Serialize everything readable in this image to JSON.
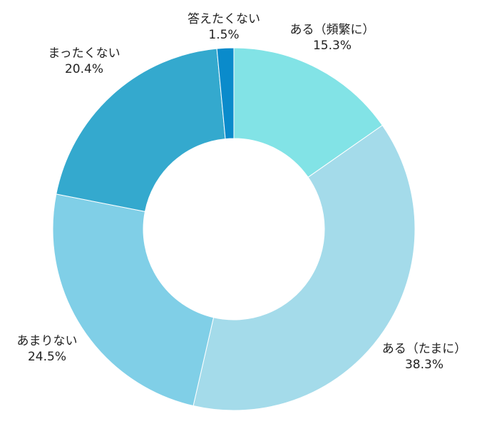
{
  "chart_data": {
    "type": "pie",
    "donut": true,
    "title": "",
    "categories": [
      "ある（頻繁に）",
      "ある（たまに）",
      "あまりない",
      "まったくない",
      "答えたくない"
    ],
    "values": [
      15.3,
      38.3,
      24.5,
      20.4,
      1.5
    ],
    "value_labels": [
      "15.3%",
      "38.3%",
      "24.5%",
      "20.4%",
      "1.5%"
    ],
    "colors": [
      "#82e3e6",
      "#a4dbea",
      "#80cfe7",
      "#34a9ce",
      "#0a8bcb"
    ],
    "start": "top",
    "direction": "clockwise",
    "legend": "none"
  }
}
